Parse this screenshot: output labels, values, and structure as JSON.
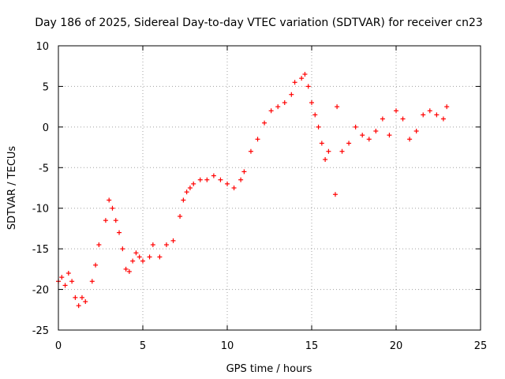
{
  "chart_data": {
    "type": "scatter",
    "title": "Day 186 of 2025, Sidereal Day-to-day VTEC variation (SDTVAR) for receiver cn23",
    "xlabel": "GPS time / hours",
    "ylabel": "SDTVAR / TECUs",
    "xlim": [
      0,
      25
    ],
    "ylim": [
      -25,
      10
    ],
    "xticks": [
      "0",
      "5",
      "10",
      "15",
      "20",
      "25"
    ],
    "yticks": [
      "-25",
      "-20",
      "-15",
      "-10",
      "-5",
      "0",
      "5",
      "10"
    ],
    "grid": true,
    "marker": "+",
    "color": "#ff0000",
    "series": [
      {
        "name": "SDTVAR",
        "x": [
          0.0,
          0.2,
          0.4,
          0.6,
          0.8,
          1.0,
          1.2,
          1.4,
          1.6,
          2.0,
          2.2,
          2.4,
          2.8,
          3.0,
          3.2,
          3.4,
          3.6,
          3.8,
          4.0,
          4.2,
          4.4,
          4.6,
          4.8,
          5.0,
          5.4,
          5.6,
          6.0,
          6.4,
          6.8,
          7.2,
          7.4,
          7.6,
          7.8,
          8.0,
          8.4,
          8.8,
          9.2,
          9.6,
          10.0,
          10.4,
          10.8,
          11.0,
          11.4,
          11.8,
          12.2,
          12.6,
          13.0,
          13.4,
          13.8,
          14.0,
          14.4,
          14.6,
          14.8,
          15.0,
          15.2,
          15.4,
          15.6,
          15.8,
          16.0,
          16.4,
          16.5,
          16.8,
          17.2,
          17.6,
          18.0,
          18.4,
          18.8,
          19.2,
          19.6,
          20.0,
          20.4,
          20.8,
          21.2,
          21.6,
          22.0,
          22.4,
          22.8,
          23.0
        ],
        "y": [
          -19,
          -18.5,
          -19.5,
          -18,
          -19,
          -21,
          -22,
          -21,
          -21.5,
          -19,
          -17,
          -14.5,
          -11.5,
          -9,
          -10,
          -11.5,
          -13,
          -15,
          -17.5,
          -17.8,
          -16.5,
          -15.5,
          -16,
          -16.5,
          -16,
          -14.5,
          -16,
          -14.5,
          -14,
          -11,
          -9,
          -8,
          -7.5,
          -7,
          -6.5,
          -6.5,
          -6,
          -6.5,
          -7,
          -7.5,
          -6.5,
          -5.5,
          -3,
          -1.5,
          0.5,
          2,
          2.5,
          3,
          4,
          5.5,
          6,
          6.5,
          5,
          3,
          1.5,
          0,
          -2,
          -4,
          -3,
          -8.3,
          2.5,
          -3,
          -2,
          0,
          -1,
          -1.5,
          -0.5,
          1,
          -1,
          2,
          1,
          -1.5,
          -0.5,
          1.5,
          2,
          1.5,
          1,
          2.5
        ]
      }
    ]
  }
}
